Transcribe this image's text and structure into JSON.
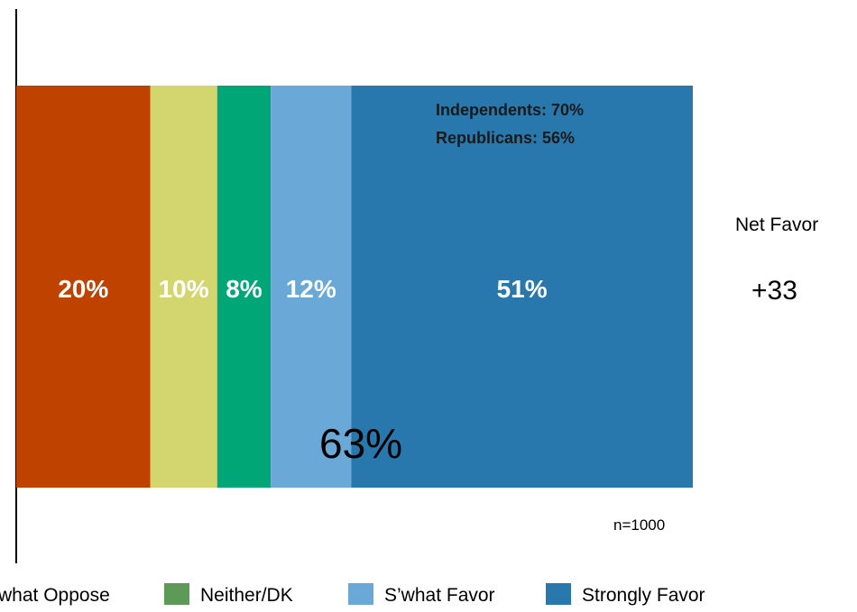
{
  "chart_data": {
    "type": "bar",
    "orientation": "horizontal-stacked",
    "series": [
      {
        "name": "S’what Oppose",
        "value": 20,
        "label": "20%",
        "color": "#bf4200"
      },
      {
        "name": "Neither/DK",
        "value": 10,
        "label": "10%",
        "color": "#d3d56e"
      },
      {
        "name": "S’what Favor",
        "value": 8,
        "label": "8%",
        "color": "#00a676"
      },
      {
        "name": "Strongly Favor",
        "value": 12,
        "label": "12%",
        "color": "#6aa8d8"
      },
      {
        "value": 51,
        "label": "51%",
        "color": "#2878ad"
      }
    ],
    "legend": [
      {
        "label": "what Oppose",
        "color": "#bf4200"
      },
      {
        "label": "Neither/DK",
        "color": "#5e9a57"
      },
      {
        "label": "S’what Favor",
        "color": "#6aa8d8"
      },
      {
        "label": "Strongly Favor",
        "color": "#2878ad"
      }
    ],
    "annotations": {
      "independents": "Independents: 70%",
      "republicans": "Republicans: 56%",
      "total_favor": "63%",
      "net_label": "Net Favor",
      "net_value": "+33",
      "sample": "n=1000"
    },
    "xlim": [
      0,
      101
    ],
    "legend_position": "bottom"
  }
}
